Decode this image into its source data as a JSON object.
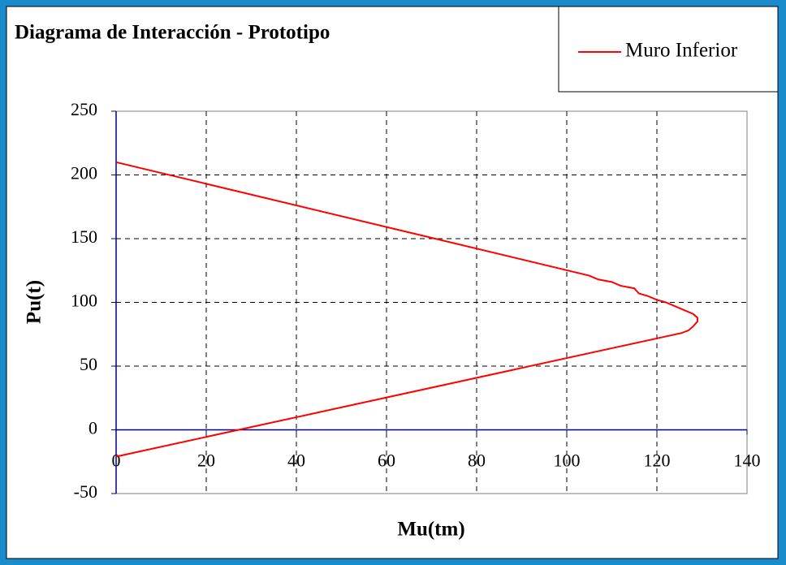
{
  "chart_data": {
    "type": "line",
    "title": "Diagrama de Interacción - Prototipo",
    "x_label": "Mu(tm)",
    "y_label": "Pu(t)",
    "x": [
      0,
      105,
      107,
      110,
      112,
      115,
      116,
      118,
      120,
      122,
      124,
      126,
      128,
      129,
      129,
      128,
      127,
      125.5,
      0
    ],
    "series": [
      {
        "name": "Muro Inferior",
        "color": "#ff0000",
        "values": [
          210,
          121,
          118,
          116,
          113,
          111,
          107,
          105,
          102,
          100,
          97,
          94,
          91,
          88,
          85,
          81,
          78,
          76,
          -21
        ]
      }
    ],
    "xlim": [
      0,
      140
    ],
    "ylim": [
      -50,
      250
    ],
    "xticks": [
      0,
      20,
      40,
      60,
      80,
      100,
      120,
      140
    ],
    "yticks": [
      -50,
      0,
      50,
      100,
      150,
      200,
      250
    ],
    "grid": true,
    "legend": "top-right"
  }
}
